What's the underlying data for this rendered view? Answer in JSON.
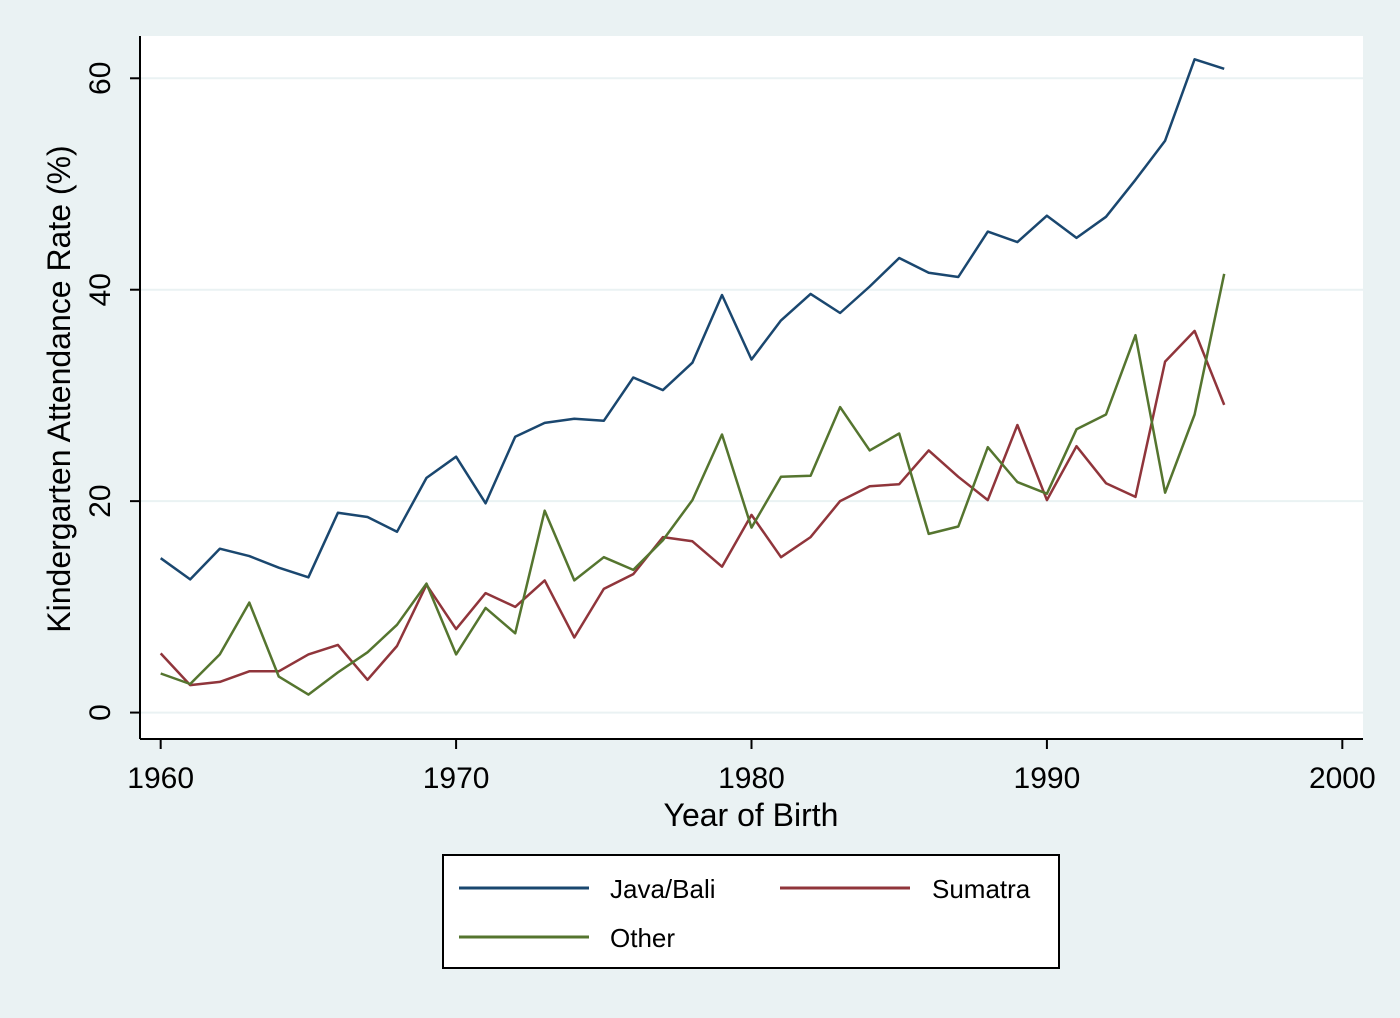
{
  "chart_data": {
    "type": "line",
    "xlabel": "Year of Birth",
    "ylabel": "Kindergarten Attendance Rate (%)",
    "xlim": [
      1959.3,
      2000.7
    ],
    "ylim": [
      -2.5,
      64
    ],
    "x_ticks": [
      1960,
      1970,
      1980,
      1990,
      2000
    ],
    "y_ticks": [
      0,
      20,
      40,
      60
    ],
    "grid": "horizontal",
    "legend_position": "bottom",
    "x": [
      1960,
      1961,
      1962,
      1963,
      1964,
      1965,
      1966,
      1967,
      1968,
      1969,
      1970,
      1971,
      1972,
      1973,
      1974,
      1975,
      1976,
      1977,
      1978,
      1979,
      1980,
      1981,
      1982,
      1983,
      1984,
      1985,
      1986,
      1987,
      1988,
      1989,
      1990,
      1991,
      1992,
      1993,
      1994,
      1995,
      1996
    ],
    "series": [
      {
        "name": "Java/Bali",
        "color": "#1a476f",
        "values": [
          14.6,
          12.6,
          15.5,
          14.8,
          13.7,
          12.8,
          18.9,
          18.5,
          17.1,
          22.2,
          24.2,
          19.8,
          26.1,
          27.4,
          27.8,
          27.6,
          31.7,
          30.5,
          33.1,
          39.5,
          33.4,
          37.1,
          39.6,
          37.8,
          40.3,
          43.0,
          41.6,
          41.2,
          45.5,
          44.5,
          47.0,
          44.9,
          46.9,
          50.4,
          54.1,
          61.8,
          60.9
        ]
      },
      {
        "name": "Sumatra",
        "color": "#90353b",
        "values": [
          5.6,
          2.6,
          2.9,
          3.9,
          3.9,
          5.5,
          6.4,
          3.1,
          6.3,
          12.1,
          7.9,
          11.3,
          10.0,
          12.5,
          7.1,
          11.7,
          13.1,
          16.6,
          16.2,
          13.8,
          18.7,
          14.7,
          16.6,
          20.0,
          21.4,
          21.6,
          24.8,
          22.3,
          20.1,
          27.2,
          20.1,
          25.2,
          21.7,
          20.4,
          33.2,
          36.1,
          29.1
        ]
      },
      {
        "name": "Other",
        "color": "#55752f",
        "values": [
          3.7,
          2.7,
          5.5,
          10.4,
          3.4,
          1.7,
          3.8,
          5.7,
          8.3,
          12.2,
          5.5,
          9.9,
          7.5,
          19.1,
          12.5,
          14.7,
          13.5,
          16.3,
          20.1,
          26.3,
          17.5,
          22.3,
          22.4,
          28.9,
          24.8,
          26.4,
          16.9,
          17.6,
          25.1,
          21.8,
          20.7,
          26.8,
          28.2,
          35.7,
          20.8,
          28.2,
          41.5
        ]
      }
    ]
  }
}
